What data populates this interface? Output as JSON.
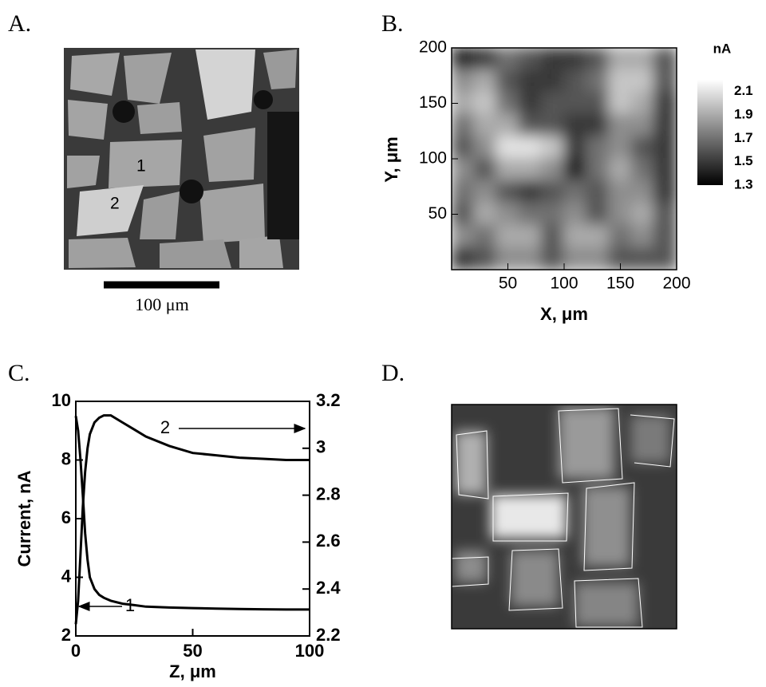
{
  "panel_labels": [
    "A.",
    "B.",
    "C.",
    "D."
  ],
  "panel_a": {
    "region_labels": [
      "1",
      "2"
    ],
    "scale_bar_label": "100 μm"
  },
  "chart_data": [
    {
      "type": "heatmap",
      "xlabel": "X, μm",
      "ylabel": "Y, μm",
      "xlim": [
        0,
        200
      ],
      "xticks": [
        50,
        100,
        150,
        200
      ],
      "ylim": [
        0,
        200
      ],
      "yticks": [
        50,
        100,
        150,
        200
      ],
      "colorbar_label": "nA",
      "clim": [
        1.3,
        2.2
      ],
      "cticks": [
        1.3,
        1.5,
        1.7,
        1.9,
        2.1
      ],
      "colormap": [
        "#000000",
        "#ffffff"
      ],
      "values": [
        [
          1.4,
          1.5,
          1.7,
          1.6,
          1.5,
          1.5,
          1.6,
          1.9,
          1.9,
          1.6
        ],
        [
          1.8,
          1.9,
          1.6,
          1.5,
          1.5,
          1.6,
          1.7,
          2.0,
          2.0,
          1.6
        ],
        [
          1.9,
          2.0,
          1.7,
          1.5,
          1.6,
          1.6,
          1.6,
          2.0,
          1.9,
          1.5
        ],
        [
          1.7,
          1.9,
          1.9,
          1.6,
          1.6,
          1.5,
          1.5,
          1.8,
          1.8,
          1.5
        ],
        [
          1.6,
          1.8,
          2.1,
          2.1,
          2.0,
          1.5,
          1.7,
          1.8,
          1.6,
          1.5
        ],
        [
          1.8,
          1.6,
          1.9,
          1.9,
          1.8,
          1.4,
          1.7,
          1.9,
          1.7,
          1.5
        ],
        [
          1.7,
          1.8,
          1.6,
          1.5,
          1.6,
          1.7,
          1.6,
          1.8,
          1.8,
          1.5
        ],
        [
          1.6,
          1.9,
          1.8,
          1.7,
          1.7,
          1.8,
          1.6,
          1.8,
          1.9,
          1.6
        ],
        [
          1.8,
          1.7,
          1.9,
          1.9,
          1.6,
          1.9,
          1.9,
          1.7,
          1.8,
          1.6
        ],
        [
          1.5,
          1.6,
          1.8,
          1.8,
          1.6,
          1.8,
          1.8,
          1.6,
          1.6,
          1.6
        ]
      ]
    },
    {
      "type": "line",
      "xlabel": "Z, μm",
      "ylabel": "Current, nA",
      "x": [
        0,
        1,
        2,
        3,
        4,
        5,
        6,
        8,
        10,
        12,
        15,
        20,
        25,
        30,
        40,
        50,
        60,
        70,
        80,
        90,
        100
      ],
      "xlim": [
        0,
        100
      ],
      "xticks": [
        0,
        50,
        100
      ],
      "ylim": [
        2,
        10
      ],
      "yticks": [
        2,
        4,
        6,
        8,
        10
      ],
      "y2lim": [
        2.2,
        3.2
      ],
      "y2ticks": [
        2.2,
        2.4,
        2.6,
        2.8,
        3,
        3.2
      ],
      "series": [
        {
          "name": "1",
          "color": "#000000",
          "values": [
            9.5,
            9.0,
            8.0,
            6.8,
            5.5,
            4.6,
            4.0,
            3.6,
            3.4,
            3.3,
            3.2,
            3.1,
            3.05,
            3.0,
            2.97,
            2.95,
            2.93,
            2.92,
            2.91,
            2.9,
            2.9
          ]
        },
        {
          "name": "2",
          "color": "#000000",
          "axis": "y2",
          "values": [
            2.25,
            2.35,
            2.55,
            2.75,
            2.9,
            3.0,
            3.06,
            3.11,
            3.13,
            3.14,
            3.14,
            3.11,
            3.08,
            3.05,
            3.01,
            2.98,
            2.97,
            2.96,
            2.955,
            2.95,
            2.95
          ]
        }
      ]
    }
  ]
}
